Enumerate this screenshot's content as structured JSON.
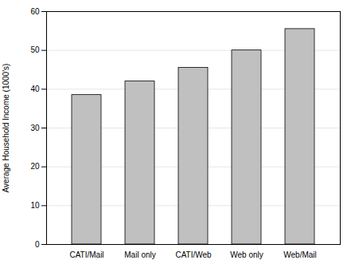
{
  "chart_data": {
    "type": "bar",
    "categories": [
      "CATI/Mail",
      "Mail only",
      "CATI/Web",
      "Web only",
      "Web/Mail"
    ],
    "values": [
      38.5,
      42.0,
      45.5,
      50.0,
      55.5
    ],
    "color": "#c0c0c0",
    "ylabel": "Average Household Income (1000's)",
    "ylim": [
      0,
      60
    ],
    "yticks": [
      0,
      10,
      20,
      30,
      40,
      50,
      60
    ],
    "grid": true
  }
}
